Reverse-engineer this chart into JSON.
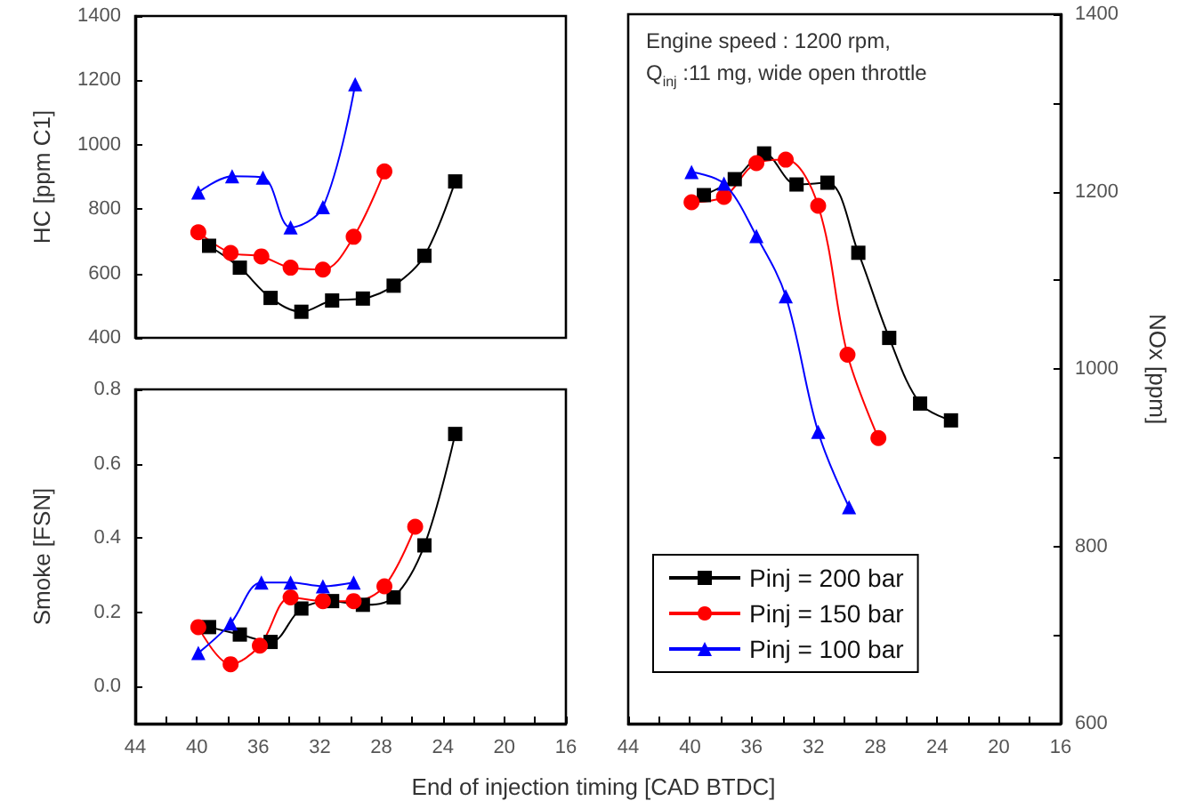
{
  "chart_data": [
    {
      "type": "line",
      "ylabel": "HC [ppm C1]",
      "xlim": [
        44,
        16
      ],
      "ylim": [
        400,
        1400
      ],
      "yticks": [
        400,
        600,
        800,
        1000,
        1200,
        1400
      ],
      "tick_labels": "y",
      "series": [
        {
          "color": "#000000",
          "marker": "square",
          "x": [
            39.2,
            37.2,
            35.2,
            33.2,
            31.2,
            29.2,
            27.2,
            25.2,
            23.2
          ],
          "values": [
            686,
            618,
            524,
            481,
            516,
            522,
            562,
            655,
            886
          ]
        },
        {
          "color": "#ff0000",
          "marker": "circle",
          "x": [
            39.9,
            37.8,
            35.8,
            33.9,
            31.8,
            29.8,
            27.8
          ],
          "values": [
            728,
            664,
            653,
            618,
            612,
            714,
            917
          ]
        },
        {
          "color": "#0000ff",
          "marker": "triangle",
          "x": [
            39.9,
            37.7,
            35.7,
            33.9,
            31.8,
            29.7
          ],
          "values": [
            852,
            902,
            898,
            743,
            806,
            1188
          ]
        }
      ]
    },
    {
      "type": "line",
      "ylabel": "Smoke [FSN]",
      "xlabel": "End of injection timing [CAD BTDC]",
      "xlim": [
        44,
        16
      ],
      "ylim": [
        -0.1,
        0.8
      ],
      "yticks": [
        {
          "value": 0,
          "label": "0.0"
        },
        0.2,
        0.4,
        0.6,
        0.8
      ],
      "xticks": [
        44,
        {
          "value": 42,
          "label": null
        },
        40,
        {
          "value": 38,
          "label": null
        },
        36,
        {
          "value": 34,
          "label": null
        },
        32,
        {
          "value": 30,
          "label": null
        },
        28,
        {
          "value": 26,
          "label": null
        },
        24,
        {
          "value": 22,
          "label": null
        },
        20,
        {
          "value": 18,
          "label": null
        },
        16
      ],
      "series": [
        {
          "color": "#000000",
          "marker": "square",
          "x": [
            39.2,
            37.2,
            35.2,
            33.2,
            31.2,
            29.2,
            27.2,
            25.2,
            23.2
          ],
          "values": [
            0.16,
            0.14,
            0.12,
            0.21,
            0.23,
            0.22,
            0.24,
            0.38,
            0.68
          ]
        },
        {
          "color": "#ff0000",
          "marker": "circle",
          "x": [
            39.9,
            37.8,
            35.9,
            33.9,
            31.8,
            29.8,
            27.8,
            25.8
          ],
          "values": [
            0.16,
            0.06,
            0.11,
            0.24,
            0.23,
            0.23,
            0.27,
            0.43
          ]
        },
        {
          "color": "#0000ff",
          "marker": "triangle",
          "x": [
            39.9,
            37.8,
            35.8,
            33.9,
            31.8,
            29.8
          ],
          "values": [
            0.09,
            0.17,
            0.28,
            0.28,
            0.27,
            0.28
          ]
        }
      ]
    },
    {
      "type": "line",
      "ylabel": "NOx [ppm]",
      "xlim": [
        44,
        16
      ],
      "ylim": [
        600,
        1400
      ],
      "legend": "bottom left",
      "yticks": [
        600,
        {
          "value": 700,
          "label": null
        },
        800,
        {
          "value": 900,
          "label": null
        },
        1000,
        {
          "value": 1100,
          "label": null
        },
        1200,
        {
          "value": 1300,
          "label": null
        },
        1400
      ],
      "xticks": [
        44,
        {
          "value": 42,
          "label": null
        },
        40,
        {
          "value": 38,
          "label": null
        },
        36,
        {
          "value": 34,
          "label": null
        },
        32,
        {
          "value": 30,
          "label": null
        },
        28,
        {
          "value": 26,
          "label": null
        },
        24,
        {
          "value": 22,
          "label": null
        },
        20,
        {
          "value": 18,
          "label": null
        },
        16
      ],
      "annotations": [
        "Engine speed : 1200 rpm,",
        "Q$_{inj}$ :11 mg, wide open throttle"
      ],
      "series": [
        {
          "name": "Pinj = 200 bar",
          "color": "#000000",
          "marker": "square",
          "x": [
            39.1,
            37.1,
            35.2,
            33.1,
            31.1,
            29.1,
            27.1,
            25.1,
            23.1
          ],
          "values": [
            1196,
            1214,
            1243,
            1208,
            1210,
            1131,
            1035,
            961,
            942
          ]
        },
        {
          "name": "Pinj = 150 bar",
          "color": "#ff0000",
          "marker": "circle",
          "x": [
            39.9,
            37.8,
            35.7,
            33.8,
            31.7,
            29.8,
            27.8
          ],
          "values": [
            1188,
            1194,
            1232,
            1236,
            1184,
            1016,
            922
          ]
        },
        {
          "name": "Pinj = 100 bar",
          "color": "#0000ff",
          "marker": "triangle",
          "x": [
            39.9,
            37.8,
            35.7,
            33.8,
            31.7,
            29.7
          ],
          "values": [
            1222,
            1209,
            1150,
            1082,
            929,
            844
          ]
        }
      ]
    }
  ]
}
